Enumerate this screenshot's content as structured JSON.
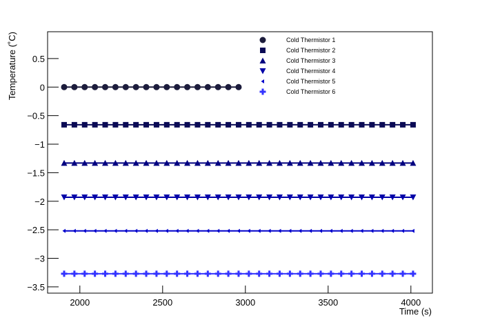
{
  "chart_data": {
    "type": "line",
    "x_label": "Time (s)",
    "y_label": "Temperature (˚C)",
    "x": [
      1905,
      1967,
      2029,
      2091,
      2153,
      2215,
      2277,
      2339,
      2401,
      2463,
      2525,
      2587,
      2649,
      2711,
      2773,
      2835,
      2897,
      2959,
      3021,
      3083,
      3145,
      3207,
      3269,
      3331,
      3393,
      3455,
      3517,
      3579,
      3641,
      3703,
      3765,
      3827,
      3889,
      3951,
      4013
    ],
    "series": [
      {
        "name": "Cold Thermistor 1",
        "color": "#1c1c3c",
        "marker": "circle",
        "values": [
          0,
          0,
          0,
          0,
          0,
          0,
          0,
          0,
          0,
          0,
          0,
          0,
          0,
          0,
          0,
          0,
          0,
          0,
          null,
          null,
          null,
          null,
          null,
          null,
          null,
          null,
          null,
          null,
          null,
          null,
          null,
          null,
          null,
          null,
          null
        ]
      },
      {
        "name": "Cold Thermistor 2",
        "color": "#0a0a55",
        "marker": "square",
        "values": [
          -0.66,
          -0.66,
          -0.66,
          -0.66,
          -0.66,
          -0.66,
          -0.66,
          -0.66,
          -0.66,
          -0.66,
          -0.66,
          -0.66,
          -0.66,
          -0.66,
          -0.66,
          -0.66,
          -0.66,
          -0.66,
          -0.66,
          -0.66,
          -0.66,
          -0.66,
          -0.66,
          -0.66,
          -0.66,
          -0.66,
          -0.66,
          -0.66,
          -0.66,
          -0.66,
          -0.66,
          -0.66,
          -0.66,
          -0.66,
          -0.66
        ]
      },
      {
        "name": "Cold Thermistor 3",
        "color": "#000080",
        "marker": "triangle-up",
        "values": [
          -1.33,
          -1.33,
          -1.33,
          -1.33,
          -1.33,
          -1.33,
          -1.33,
          -1.33,
          -1.33,
          -1.33,
          -1.33,
          -1.33,
          -1.33,
          -1.33,
          -1.33,
          -1.33,
          -1.33,
          -1.33,
          -1.33,
          -1.33,
          -1.33,
          -1.33,
          -1.33,
          -1.33,
          -1.33,
          -1.33,
          -1.33,
          -1.33,
          -1.33,
          -1.33,
          -1.33,
          -1.33,
          -1.33,
          -1.33,
          -1.33
        ]
      },
      {
        "name": "Cold Thermistor 4",
        "color": "#0000a8",
        "marker": "triangle-down",
        "values": [
          -1.93,
          -1.93,
          -1.93,
          -1.93,
          -1.93,
          -1.93,
          -1.93,
          -1.93,
          -1.93,
          -1.93,
          -1.93,
          -1.93,
          -1.93,
          -1.93,
          -1.93,
          -1.93,
          -1.93,
          -1.93,
          -1.93,
          -1.93,
          -1.93,
          -1.93,
          -1.93,
          -1.93,
          -1.93,
          -1.93,
          -1.93,
          -1.93,
          -1.93,
          -1.93,
          -1.93,
          -1.93,
          -1.93,
          -1.93,
          -1.93
        ]
      },
      {
        "name": "Cold Thermistor 5",
        "color": "#0000cc",
        "marker": "triangle-left",
        "values": [
          -2.52,
          -2.52,
          -2.52,
          -2.52,
          -2.52,
          -2.52,
          -2.52,
          -2.52,
          -2.52,
          -2.52,
          -2.52,
          -2.52,
          -2.52,
          -2.52,
          -2.52,
          -2.52,
          -2.52,
          -2.52,
          -2.52,
          -2.52,
          -2.52,
          -2.52,
          -2.52,
          -2.52,
          -2.52,
          -2.52,
          -2.52,
          -2.52,
          -2.52,
          -2.52,
          -2.52,
          -2.52,
          -2.52,
          -2.52,
          -2.52
        ]
      },
      {
        "name": "Cold Thermistor 6",
        "color": "#3333ff",
        "marker": "cross",
        "values": [
          -3.27,
          -3.27,
          -3.27,
          -3.27,
          -3.27,
          -3.27,
          -3.27,
          -3.27,
          -3.27,
          -3.27,
          -3.27,
          -3.27,
          -3.27,
          -3.27,
          -3.27,
          -3.27,
          -3.27,
          -3.27,
          -3.27,
          -3.27,
          -3.27,
          -3.27,
          -3.27,
          -3.27,
          -3.27,
          -3.27,
          -3.27,
          -3.27,
          -3.27,
          -3.27,
          -3.27,
          -3.27,
          -3.27,
          -3.27,
          -3.27
        ]
      }
    ],
    "xlim": [
      1805,
      4130
    ],
    "ylim": [
      -3.61,
      0.97
    ],
    "xticks": [
      2000,
      2500,
      3000,
      3500,
      4000
    ],
    "yticks": [
      0.5,
      0,
      {
        "value": -0.5,
        "label": "−0.5"
      },
      {
        "value": -1,
        "label": "−1"
      },
      {
        "value": -1.5,
        "label": "−1.5"
      },
      {
        "value": -2,
        "label": "−2"
      },
      {
        "value": -2.5,
        "label": "−2.5"
      },
      {
        "value": -3,
        "label": "−3"
      },
      {
        "value": -3.5,
        "label": "−3.5"
      }
    ],
    "legend": "upper-right",
    "grid": false
  }
}
